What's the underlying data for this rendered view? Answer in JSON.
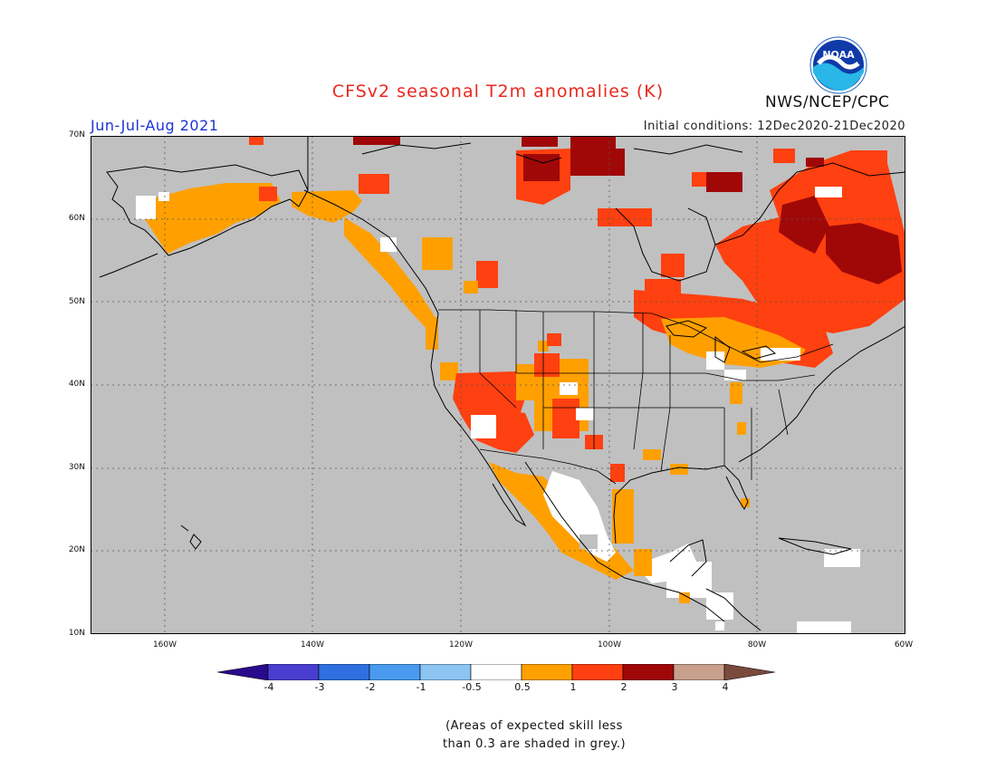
{
  "title": "CFSv2 seasonal T2m anomalies (K)",
  "season": "Jun-Jul-Aug 2021",
  "initial_conditions": "Initial conditions: 12Dec2020-21Dec2020",
  "agency": "NWS/NCEP/CPC",
  "logo_text": "NOAA",
  "lat_labels": [
    "70N",
    "60N",
    "50N",
    "40N",
    "30N",
    "20N",
    "10N"
  ],
  "lon_labels": [
    "160W",
    "140W",
    "120W",
    "100W",
    "80W",
    "60W"
  ],
  "colorbar": {
    "labels": [
      "-4",
      "-3",
      "-2",
      "-1",
      "-0.5",
      "0.5",
      "1",
      "2",
      "3",
      "4"
    ],
    "colors": [
      "#2a0a8c",
      "#4a3ed0",
      "#2f6fe0",
      "#4a9af0",
      "#8cc4f2",
      "#ffffff",
      "#ffa000",
      "#ff4010",
      "#a00808",
      "#c8a08c",
      "#7a4a3c"
    ]
  },
  "note_line1": "(Areas of expected skill less",
  "note_line2": "than 0.3 are shaded in grey.)",
  "colors": {
    "grey": "#c0c0c0",
    "white": "#ffffff",
    "orange": "#ffa000",
    "red": "#ff4010",
    "darkred": "#a00808"
  }
}
